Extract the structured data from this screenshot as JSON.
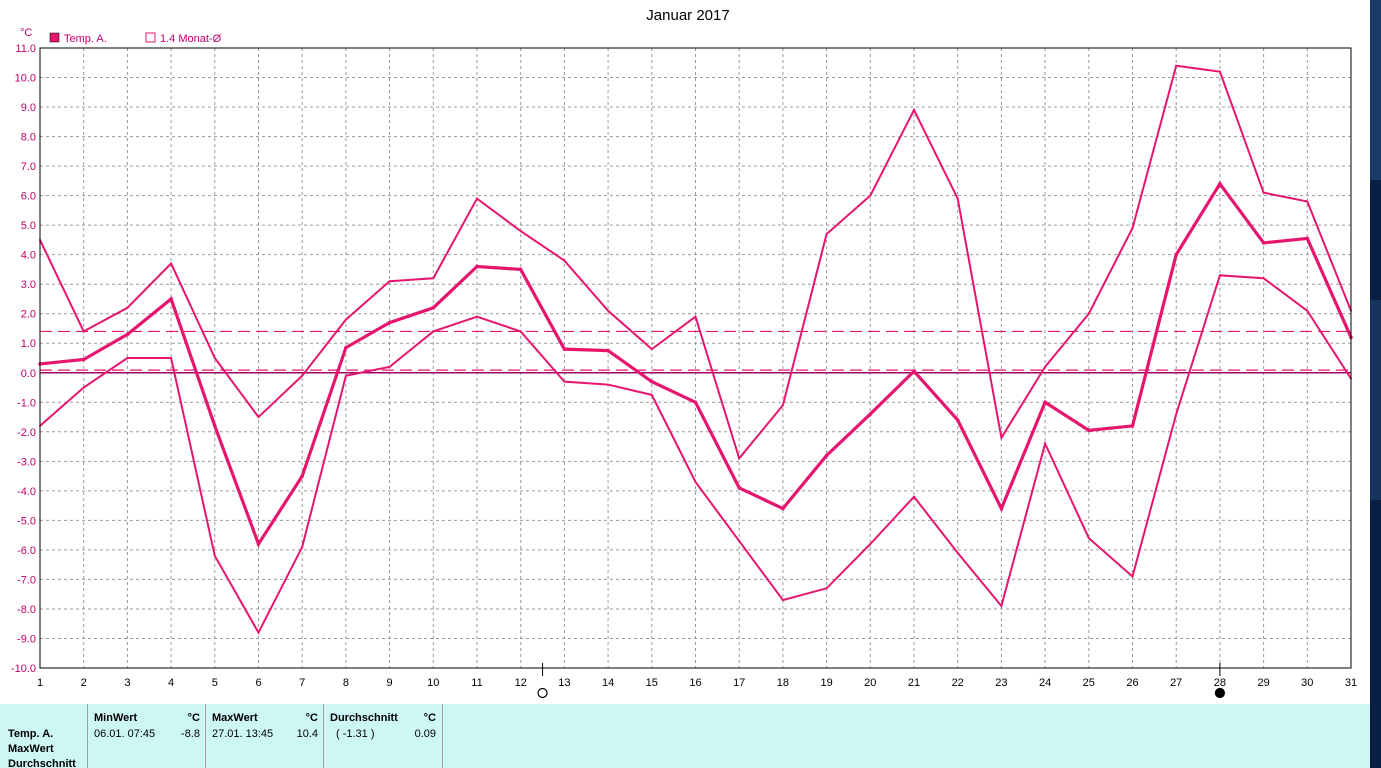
{
  "chart_data": {
    "type": "line",
    "title": "Januar 2017",
    "ylabel": "°C",
    "xlim": [
      1,
      31
    ],
    "ylim": [
      -10,
      11
    ],
    "grid": true,
    "legend_position": "top-left",
    "x": [
      1,
      2,
      3,
      4,
      5,
      6,
      7,
      8,
      9,
      10,
      11,
      12,
      13,
      14,
      15,
      16,
      17,
      18,
      19,
      20,
      21,
      22,
      23,
      24,
      25,
      26,
      27,
      28,
      29,
      30,
      31
    ],
    "x_tick_labels": [
      "1",
      "2",
      "3",
      "4",
      "5",
      "6",
      "7",
      "8",
      "9",
      "10",
      "11",
      "12",
      "13",
      "14",
      "15",
      "16",
      "17",
      "18",
      "19",
      "20",
      "21",
      "22",
      "23",
      "24",
      "25",
      "26",
      "27",
      "28",
      "29",
      "30",
      "31"
    ],
    "y_tick_labels": [
      "11.0",
      "10.0",
      "9.0",
      "8.0",
      "7.0",
      "6.0",
      "5.0",
      "4.0",
      "3.0",
      "2.0",
      "1.0",
      "0.0",
      "-1.0",
      "-2.0",
      "-3.0",
      "-4.0",
      "-5.0",
      "-6.0",
      "-7.0",
      "-8.0",
      "-9.0",
      "-10.0"
    ],
    "legend": [
      {
        "label": "Temp. A.",
        "filled": true,
        "color": "#e6166e"
      },
      {
        "label": "1.4 Monat-Ø",
        "filled": false,
        "color": "#e6166e"
      }
    ],
    "series": [
      {
        "name": "Temp. A.",
        "role": "mean",
        "color": "#e6166e",
        "values": [
          0.3,
          0.45,
          1.3,
          2.5,
          -1.8,
          -5.8,
          -3.5,
          0.85,
          1.7,
          2.2,
          3.6,
          3.5,
          0.8,
          0.75,
          -0.3,
          -1.0,
          -3.9,
          -4.6,
          -2.8,
          -1.4,
          0.05,
          -1.6,
          -4.6,
          -1.0,
          -1.95,
          -1.8,
          4.0,
          6.4,
          4.4,
          4.55,
          1.2
        ]
      },
      {
        "role": "max",
        "color": "#e6166e",
        "values": [
          4.5,
          1.4,
          2.2,
          3.7,
          0.5,
          -1.5,
          -0.1,
          1.8,
          3.1,
          3.2,
          5.9,
          4.8,
          3.8,
          2.1,
          0.8,
          1.9,
          -2.9,
          -1.1,
          4.7,
          6.0,
          8.9,
          5.9,
          -2.2,
          0.2,
          2.0,
          4.9,
          10.4,
          10.2,
          6.1,
          5.8,
          2.1
        ]
      },
      {
        "role": "min",
        "color": "#e6166e",
        "values": [
          -1.8,
          -0.5,
          0.5,
          0.5,
          -6.2,
          -8.8,
          -5.9,
          -0.1,
          0.2,
          1.4,
          1.9,
          1.4,
          -0.3,
          -0.4,
          -0.75,
          -3.7,
          -5.7,
          -7.7,
          -7.3,
          -5.8,
          -4.2,
          -6.1,
          -7.9,
          -2.4,
          -5.6,
          -6.9,
          -1.4,
          3.3,
          3.2,
          2.1,
          -0.2
        ]
      }
    ],
    "reference_lines": [
      {
        "value": 1.4,
        "style": "dashed",
        "color": "#e6166e"
      },
      {
        "value": 0.09,
        "style": "dashed",
        "color": "#e6166e"
      }
    ],
    "markers": [
      {
        "x": 12.5,
        "symbol": "open-circle"
      },
      {
        "x": 28,
        "symbol": "filled-circle"
      }
    ]
  },
  "stats": {
    "row_labels": [
      "Temp. A.",
      "MaxWert",
      "Durchschnitt"
    ],
    "min": {
      "header": "MinWert",
      "unit": "°C",
      "date": "06.01.  07:45",
      "value": "-8.8"
    },
    "max": {
      "header": "MaxWert",
      "unit": "°C",
      "date": "27.01.  13:45",
      "value": "10.4"
    },
    "avg": {
      "header": "Durchschnitt",
      "unit": "°C",
      "note": "( -1.31 )",
      "value": "0.09"
    }
  },
  "colors": {
    "accent": "#e6166e",
    "grid": "#9a9a9a",
    "stats_background": "#ccf7f5",
    "axis_label": "#c0006a"
  }
}
